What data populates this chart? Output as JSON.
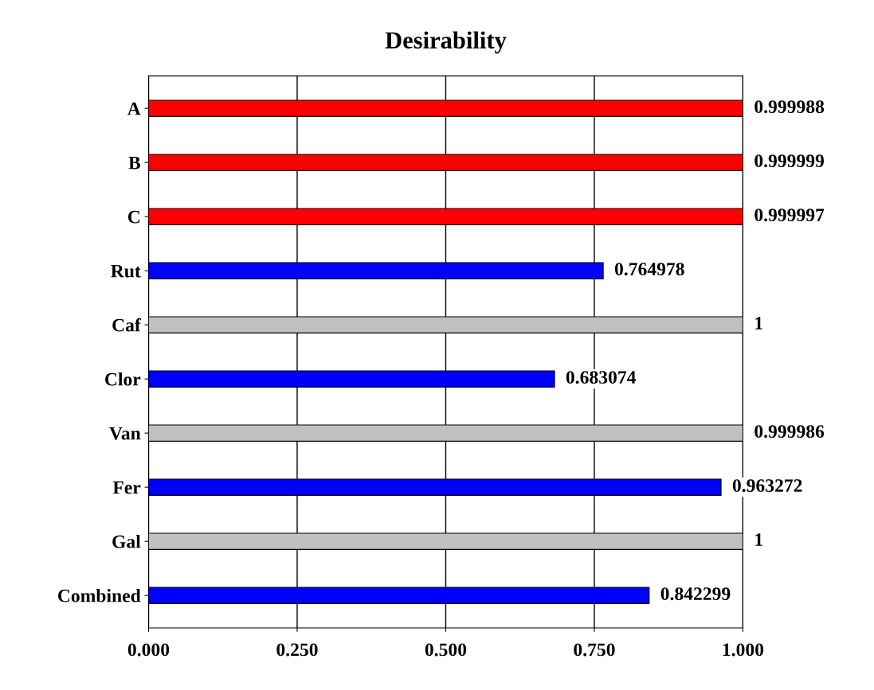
{
  "chart_data": {
    "type": "bar",
    "orientation": "horizontal",
    "title": "Desirability",
    "categories": [
      "A",
      "B",
      "C",
      "Rut",
      "Caf",
      "Clor",
      "Van",
      "Fer",
      "Gal",
      "Combined"
    ],
    "values": [
      0.999988,
      0.999999,
      0.999997,
      0.764978,
      1,
      0.683074,
      0.999986,
      0.963272,
      1,
      0.842299
    ],
    "colors": [
      "#ff0000",
      "#ff0000",
      "#ff0000",
      "#0000ff",
      "#c0c0c0",
      "#0000ff",
      "#c0c0c0",
      "#0000ff",
      "#c0c0c0",
      "#0000ff"
    ],
    "xlim": [
      0,
      1
    ],
    "xticks": [
      {
        "value": 0,
        "label": "0.000"
      },
      {
        "value": 0.25,
        "label": "0.250"
      },
      {
        "value": 0.5,
        "label": "0.500"
      },
      {
        "value": 0.75,
        "label": "0.750"
      },
      {
        "value": 1,
        "label": "1.000"
      }
    ],
    "grid": "x",
    "data_labels": true
  }
}
